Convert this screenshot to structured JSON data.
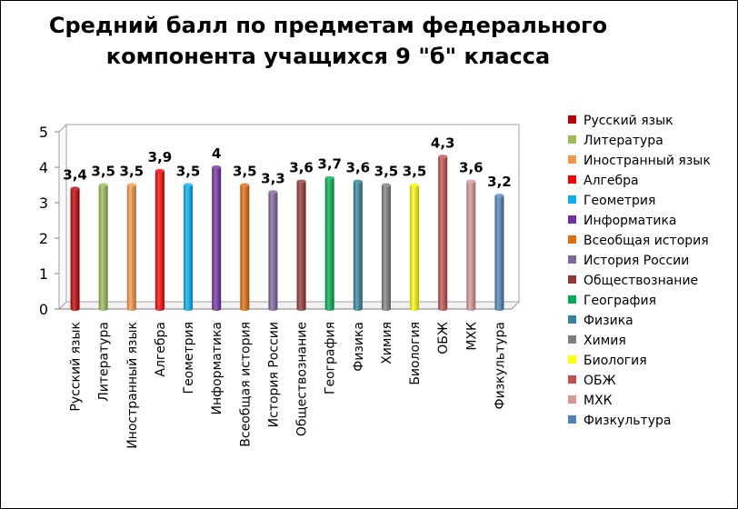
{
  "title_lines": [
    "Средний балл по предметам федерального",
    "компонента учащихся 9 \"б\" класса"
  ],
  "chart_data": {
    "type": "bar",
    "title": "Средний балл по предметам федерального компонента учащихся 9 \"б\" класса",
    "categories": [
      "Русский язык",
      "Литература",
      "Иностранный язык",
      "Алгебра",
      "Геометрия",
      "Информатика",
      "Всеобщая история",
      "История России",
      "Обществознание",
      "География",
      "Физика",
      "Химия",
      "Биология",
      "ОБЖ",
      "МХК",
      "Физкультура"
    ],
    "values": [
      3.4,
      3.5,
      3.5,
      3.9,
      3.5,
      4,
      3.5,
      3.3,
      3.6,
      3.7,
      3.6,
      3.5,
      3.5,
      4.3,
      3.6,
      3.2
    ],
    "value_labels": [
      "3,4",
      "3,5",
      "3,5",
      "3,9",
      "3,5",
      "4",
      "3,5",
      "3,3",
      "3,6",
      "3,7",
      "3,6",
      "3,5",
      "3,5",
      "4,3",
      "3,6",
      "3,2"
    ],
    "colors": [
      "#C00000",
      "#9BBB59",
      "#F79646",
      "#FF0000",
      "#00B0F0",
      "#7030A0",
      "#E46C0A",
      "#8064A2",
      "#953735",
      "#00B050",
      "#31859C",
      "#7F7F7F",
      "#FFFF00",
      "#C0504D",
      "#D99694",
      "#4F81BD"
    ],
    "ylim": [
      0,
      5
    ],
    "yticks": [
      "0",
      "1",
      "2",
      "3",
      "4",
      "5"
    ],
    "grid": false,
    "legend_position": "right"
  }
}
